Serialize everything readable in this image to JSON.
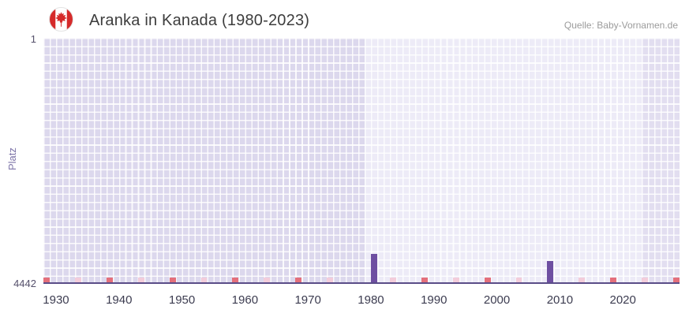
{
  "header": {
    "title": "Aranka in Kanada (1980-2023)",
    "source": "Quelle: Baby-Vornamen.de",
    "flag_icon": "canada-flag"
  },
  "chart_data": {
    "type": "bar",
    "title": "Aranka in Kanada (1980-2023)",
    "xlabel": "",
    "ylabel": "Platz",
    "y_axis": {
      "labels": [
        "1",
        "4442"
      ],
      "min": 1,
      "max": 4442,
      "inverted": true
    },
    "x_axis": {
      "min_year": 1928,
      "max_year": 2029,
      "ticks": [
        1930,
        1940,
        1950,
        1960,
        1970,
        1980,
        1990,
        2000,
        2010,
        2020
      ]
    },
    "bars": [
      {
        "year": 1980,
        "rank": 3900
      },
      {
        "year": 2008,
        "rank": 4030
      }
    ],
    "baseline_markers": {
      "strong_years": [
        1928,
        1938,
        1948,
        1958,
        1968,
        1988,
        1998,
        2018,
        2028
      ],
      "light_years": [
        1933,
        1943,
        1953,
        1963,
        1973,
        1983,
        1993,
        2003,
        2013,
        2023
      ]
    },
    "regions": [
      {
        "from": 1928,
        "to": 1979,
        "color": "#dcd8ed"
      },
      {
        "from": 1979,
        "to": 2023,
        "color": "#edebf7"
      },
      {
        "from": 2023,
        "to": 2029,
        "color": "#e2def0"
      }
    ],
    "grid": true,
    "legend": "none",
    "colors": {
      "bar": "#6e4fa1",
      "marker_strong": "#e46f7b",
      "marker_light": "#f3cddb",
      "baseline": "#5a4d88",
      "axis_text": "#3c3c50",
      "y_text": "#55506b",
      "ylabel_text": "#7d74a8",
      "flag_red": "#d52b2b"
    }
  }
}
